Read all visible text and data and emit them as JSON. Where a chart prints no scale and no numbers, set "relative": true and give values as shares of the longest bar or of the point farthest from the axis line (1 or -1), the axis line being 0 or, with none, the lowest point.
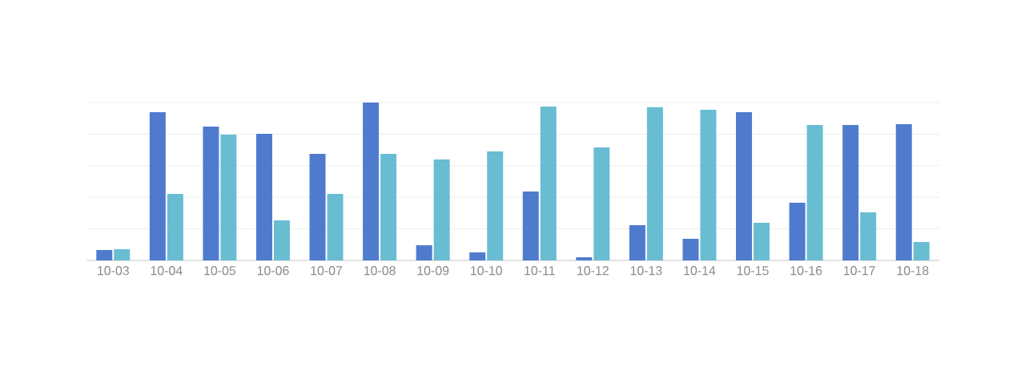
{
  "chart_data": {
    "type": "bar",
    "relative": true,
    "grid": "y",
    "categories": [
      "10-03",
      "10-04",
      "10-05",
      "10-06",
      "10-07",
      "10-08",
      "10-09",
      "10-10",
      "10-11",
      "10-12",
      "10-13",
      "10-14",
      "10-15",
      "10-16",
      "10-17",
      "10-18"
    ],
    "series": [
      {
        "color": "#4f7bcf",
        "values": [
          0.066,
          0.939,
          0.848,
          0.802,
          0.675,
          1,
          0.096,
          0.051,
          0.437,
          0.02,
          0.223,
          0.137,
          0.939,
          0.365,
          0.858,
          0.863
        ]
      },
      {
        "color": "#68bdd3",
        "values": [
          0.071,
          0.421,
          0.797,
          0.254,
          0.421,
          0.675,
          0.64,
          0.69,
          0.975,
          0.716,
          0.97,
          0.954,
          0.239,
          0.858,
          0.305,
          0.117
        ]
      }
    ]
  }
}
